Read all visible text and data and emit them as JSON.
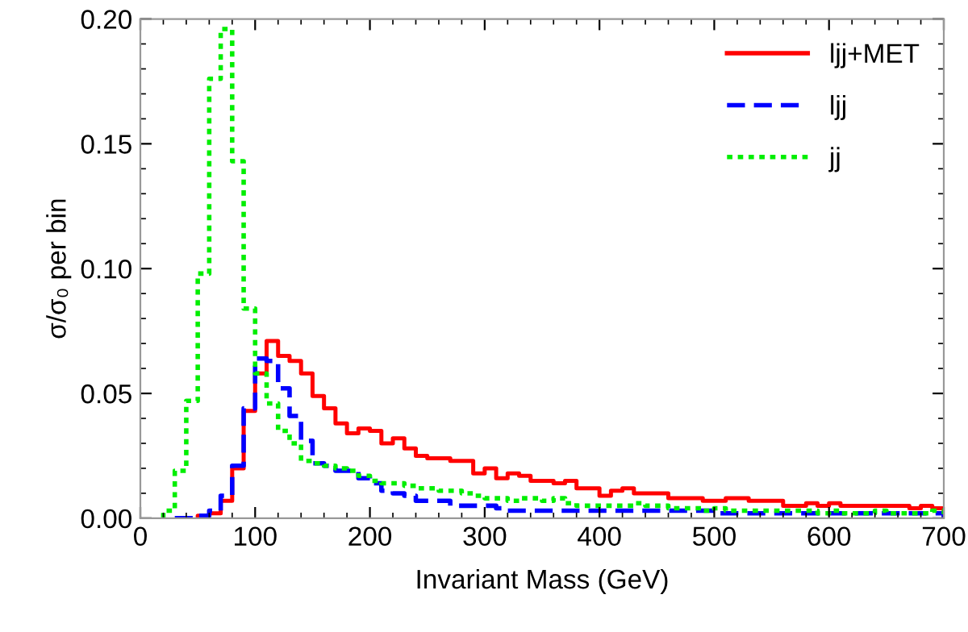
{
  "chart_data": {
    "type": "histogram",
    "xlabel": "Invariant Mass (GeV)",
    "ylabel": "σ/σ₀ per bin",
    "bins": [
      20,
      30,
      40,
      50,
      60,
      70,
      80,
      90,
      100,
      110,
      120,
      130,
      140,
      150,
      160,
      170,
      180,
      190,
      200,
      210,
      220,
      230,
      240,
      250,
      260,
      270,
      280,
      290,
      300,
      310,
      320,
      330,
      340,
      350,
      360,
      370,
      380,
      390,
      400,
      410,
      420,
      430,
      440,
      450,
      460,
      470,
      480,
      490,
      500,
      510,
      520,
      530,
      540,
      550,
      560,
      570,
      580,
      590,
      600,
      610,
      620,
      630,
      640,
      650,
      660,
      670,
      680,
      690,
      700
    ],
    "series": [
      {
        "name": "ljj+MET",
        "color": "#ff0000",
        "line_style": "solid",
        "bins": [
          50,
          60,
          70,
          80,
          90,
          100,
          110,
          120,
          130,
          140,
          150,
          160,
          170,
          180,
          190,
          200,
          210,
          220,
          230,
          240,
          250,
          260,
          270,
          280,
          290,
          300,
          310,
          320,
          330,
          340,
          350,
          360,
          370,
          380,
          390,
          400,
          410,
          420,
          430,
          440,
          450,
          460,
          470,
          480,
          490,
          500,
          510,
          520,
          530,
          540,
          550,
          560,
          570,
          580,
          590,
          600,
          610,
          620,
          630,
          640,
          650,
          660,
          670,
          680,
          690,
          700
        ],
        "values": [
          0.001,
          0.002,
          0.007,
          0.02,
          0.043,
          0.058,
          0.071,
          0.065,
          0.063,
          0.058,
          0.049,
          0.044,
          0.038,
          0.034,
          0.036,
          0.035,
          0.03,
          0.032,
          0.028,
          0.025,
          0.024,
          0.024,
          0.023,
          0.023,
          0.018,
          0.02,
          0.016,
          0.018,
          0.017,
          0.015,
          0.015,
          0.014,
          0.015,
          0.012,
          0.012,
          0.009,
          0.011,
          0.012,
          0.01,
          0.01,
          0.01,
          0.008,
          0.008,
          0.008,
          0.007,
          0.007,
          0.008,
          0.008,
          0.007,
          0.007,
          0.007,
          0.005,
          0.005,
          0.006,
          0.005,
          0.006,
          0.005,
          0.005,
          0.005,
          0.005,
          0.005,
          0.005,
          0.004,
          0.005,
          0.004
        ]
      },
      {
        "name": "ljj",
        "color": "#0000ff",
        "line_style": "dashed",
        "bins": [
          30,
          40,
          50,
          60,
          70,
          80,
          90,
          100,
          110,
          120,
          130,
          140,
          150,
          160,
          170,
          180,
          190,
          200,
          210,
          220,
          230,
          240,
          250,
          260,
          270,
          280,
          290,
          300,
          310,
          320,
          330,
          340,
          350,
          360,
          370,
          380,
          390,
          400,
          410,
          420,
          430,
          440,
          450,
          460,
          470,
          480,
          490,
          500,
          510,
          520,
          530,
          540,
          550,
          560,
          570,
          580,
          590,
          600,
          610,
          620,
          630,
          640,
          650,
          660,
          670,
          680,
          690,
          700
        ],
        "values": [
          0.0,
          0.0,
          0.001,
          0.003,
          0.009,
          0.021,
          0.044,
          0.064,
          0.063,
          0.052,
          0.041,
          0.031,
          0.022,
          0.021,
          0.019,
          0.019,
          0.016,
          0.014,
          0.011,
          0.01,
          0.009,
          0.007,
          0.007,
          0.007,
          0.005,
          0.005,
          0.005,
          0.005,
          0.004,
          0.003,
          0.003,
          0.003,
          0.003,
          0.003,
          0.003,
          0.003,
          0.003,
          0.003,
          0.003,
          0.003,
          0.003,
          0.003,
          0.003,
          0.003,
          0.003,
          0.003,
          0.003,
          0.002,
          0.002,
          0.002,
          0.002,
          0.002,
          0.002,
          0.002,
          0.002,
          0.002,
          0.002,
          0.002,
          0.002,
          0.002,
          0.002,
          0.002,
          0.002,
          0.002,
          0.002,
          0.002,
          0.002
        ]
      },
      {
        "name": "jj",
        "color": "#00ee00",
        "line_style": "dotted",
        "values": [
          0.003,
          0.019,
          0.047,
          0.098,
          0.176,
          0.196,
          0.143,
          0.084,
          0.058,
          0.046,
          0.035,
          0.03,
          0.023,
          0.022,
          0.021,
          0.02,
          0.019,
          0.017,
          0.015,
          0.014,
          0.014,
          0.013,
          0.012,
          0.012,
          0.011,
          0.011,
          0.01,
          0.009,
          0.008,
          0.008,
          0.007,
          0.008,
          0.008,
          0.007,
          0.008,
          0.006,
          0.005,
          0.005,
          0.005,
          0.005,
          0.005,
          0.006,
          0.005,
          0.005,
          0.004,
          0.004,
          0.004,
          0.003,
          0.004,
          0.003,
          0.003,
          0.003,
          0.003,
          0.003,
          0.003,
          0.003,
          0.003,
          0.002,
          0.003,
          0.002,
          0.002,
          0.002,
          0.003,
          0.002,
          0.002,
          0.002,
          0.002,
          0.003
        ]
      }
    ],
    "xlim": [
      0,
      700
    ],
    "ylim": [
      0,
      0.2
    ],
    "xticks": [
      0,
      100,
      200,
      300,
      400,
      500,
      600,
      700
    ],
    "yticks": [
      {
        "value": 0,
        "label": "0.00"
      },
      {
        "value": 0.05,
        "label": "0.05"
      },
      {
        "value": 0.1,
        "label": "0.10"
      },
      {
        "value": 0.15,
        "label": "0.15"
      },
      {
        "value": 0.2,
        "label": "0.20"
      }
    ],
    "legend": "top right",
    "grid": false
  }
}
